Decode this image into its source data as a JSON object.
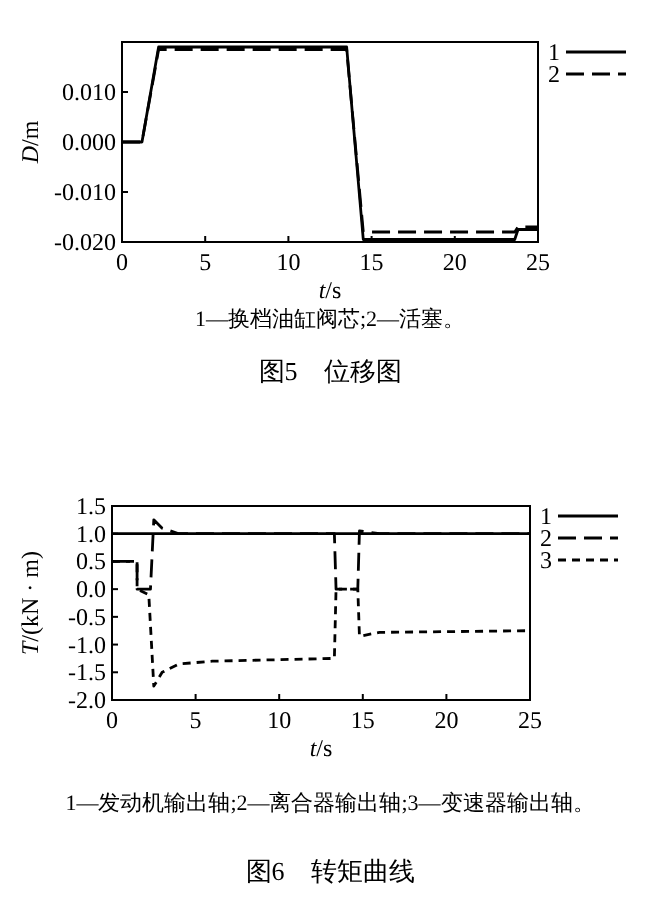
{
  "chart_data": [
    {
      "type": "line",
      "title": "图5　位移图",
      "annotations": [
        "1—换档油缸阀芯;2—活塞。"
      ],
      "xlabel": "*t*/s",
      "ylabel": "*D*/m",
      "xlim": [
        0,
        25
      ],
      "ylim": [
        -0.02,
        0.02
      ],
      "xticks": [
        0,
        5,
        10,
        15,
        20,
        25
      ],
      "yticks": [
        {
          "value": -0.02,
          "label": "-0.020"
        },
        {
          "value": -0.01,
          "label": "-0.010"
        },
        {
          "value": 0,
          "label": "0.000"
        },
        {
          "value": 0.01,
          "label": "0.010"
        }
      ],
      "legend": "right",
      "series": [
        {
          "name": "1",
          "color": "#000000",
          "line_style": "solid",
          "x": [
            0,
            1.2,
            2.2,
            13.5,
            14.5,
            23.6,
            23.8,
            25
          ],
          "values": [
            0,
            0,
            0.019,
            0.019,
            -0.0195,
            -0.0195,
            -0.0175,
            -0.0175
          ]
        },
        {
          "name": "2",
          "color": "#000000",
          "line_style": "dashed",
          "x": [
            0,
            1.2,
            2.2,
            13.5,
            14.5,
            23.6,
            23.8,
            25
          ],
          "values": [
            0,
            0,
            0.0185,
            0.0185,
            -0.018,
            -0.018,
            -0.017,
            -0.017
          ]
        }
      ]
    },
    {
      "type": "line",
      "title": "图6　转矩曲线",
      "annotations": [
        "1—发动机输出轴;2—离合器输出轴;3—变速器输出轴。"
      ],
      "xlabel": "*t*/s",
      "ylabel": "*T*/(kN · m)",
      "xlim": [
        0,
        25
      ],
      "ylim": [
        -2,
        1.5
      ],
      "xticks": [
        0,
        5,
        10,
        15,
        20,
        25
      ],
      "yticks": [
        {
          "value": -2,
          "label": "-2.0"
        },
        {
          "value": -1.5,
          "label": "-1.5"
        },
        {
          "value": -1,
          "label": "-1.0"
        },
        {
          "value": -0.5,
          "label": "-0.5"
        },
        {
          "value": 0,
          "label": "0.0"
        },
        {
          "value": 0.5,
          "label": "0.5"
        },
        {
          "value": 1,
          "label": "1.0"
        },
        {
          "value": 1.5,
          "label": "1.5"
        }
      ],
      "legend": "right",
      "series": [
        {
          "name": "1",
          "color": "#000000",
          "line_style": "solid",
          "x": [
            0,
            25
          ],
          "values": [
            1,
            1
          ]
        },
        {
          "name": "2",
          "color": "#000000",
          "line_style": "dashed",
          "x": [
            0,
            1.5,
            1.5,
            2.3,
            2.5,
            3,
            4,
            13.3,
            13.4,
            14.7,
            14.8,
            16,
            25
          ],
          "values": [
            0.5,
            0.5,
            0,
            0,
            1.25,
            1.1,
            1,
            1,
            0,
            0,
            1.05,
            1,
            1
          ]
        },
        {
          "name": "3",
          "color": "#000000",
          "line_style": "dotted",
          "x": [
            0,
            1.5,
            1.5,
            2.2,
            2.5,
            3,
            4,
            6,
            13.3,
            13.4,
            14.7,
            14.8,
            16,
            25
          ],
          "values": [
            0.5,
            0.5,
            0,
            -0.1,
            -1.75,
            -1.5,
            -1.35,
            -1.3,
            -1.25,
            0,
            0,
            -0.85,
            -0.78,
            -0.75
          ]
        }
      ]
    }
  ]
}
